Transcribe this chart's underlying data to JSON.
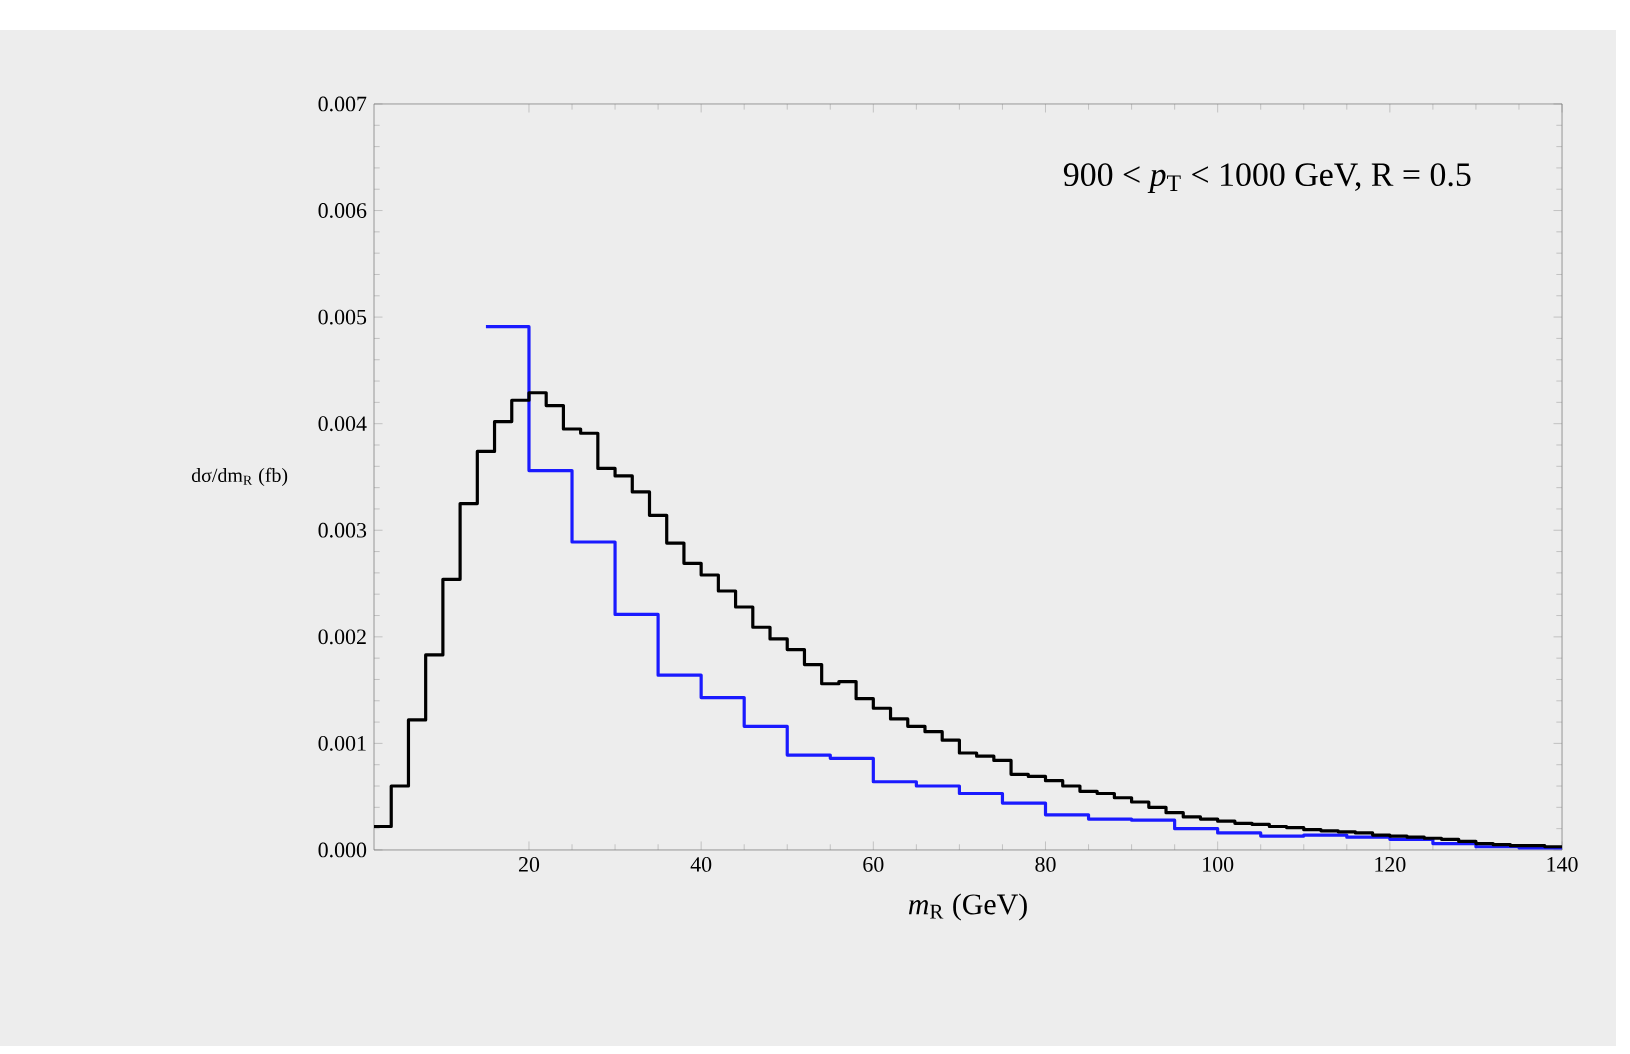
{
  "chart_data": {
    "type": "step",
    "xlabel": "*m*$_{R}$ (GeV)",
    "ylabel": "dσ/dm$_{R}$ (fb)",
    "annotations": [
      "900 < *p*$_{T}$ < 1000 GeV, R = 0.5"
    ],
    "xlim": [
      2,
      140
    ],
    "xticks": [
      20,
      40,
      60,
      80,
      100,
      120,
      140
    ],
    "ylim": [
      0,
      0.007
    ],
    "yticks": [
      {
        "value": 0,
        "label": "0.000"
      },
      {
        "value": 0.001,
        "label": "0.001"
      },
      {
        "value": 0.002,
        "label": "0.002"
      },
      {
        "value": 0.003,
        "label": "0.003"
      },
      {
        "value": 0.004,
        "label": "0.004"
      },
      {
        "value": 0.005,
        "label": "0.005"
      },
      {
        "value": 0.006,
        "label": "0.006"
      },
      {
        "value": 0.007,
        "label": "0.007"
      }
    ],
    "series": [
      {
        "color": "#1a1aff",
        "x": [
          15,
          20,
          25,
          30,
          35,
          40,
          45,
          50,
          55,
          60,
          65,
          70,
          75,
          80,
          85,
          90,
          95,
          100,
          105,
          110,
          115,
          120,
          125,
          130,
          135,
          140
        ],
        "values": [
          0.00491,
          0.00356,
          0.00289,
          0.00221,
          0.00164,
          0.00143,
          0.00116,
          0.00089,
          0.00086,
          0.00064,
          0.0006,
          0.00053,
          0.00044,
          0.00033,
          0.00029,
          0.00028,
          0.0002,
          0.00016,
          0.00013,
          0.00014,
          0.00012,
          0.0001,
          6e-05,
          3e-05,
          2e-05,
          2e-05
        ]
      },
      {
        "color": "#000000",
        "x": [
          2,
          4,
          6,
          8,
          10,
          12,
          14,
          16,
          18,
          20,
          22,
          24,
          26,
          28,
          30,
          32,
          34,
          36,
          38,
          40,
          42,
          44,
          46,
          48,
          50,
          52,
          54,
          56,
          58,
          60,
          62,
          64,
          66,
          68,
          70,
          72,
          74,
          76,
          78,
          80,
          82,
          84,
          86,
          88,
          90,
          92,
          94,
          96,
          98,
          100,
          102,
          104,
          106,
          108,
          110,
          112,
          114,
          116,
          118,
          120,
          122,
          124,
          126,
          128,
          130,
          132,
          134,
          136,
          138,
          140
        ],
        "values": [
          0.00022,
          0.0006,
          0.00122,
          0.00183,
          0.00254,
          0.00325,
          0.00374,
          0.00402,
          0.00422,
          0.00429,
          0.00417,
          0.00395,
          0.00391,
          0.00358,
          0.00351,
          0.00336,
          0.00314,
          0.00288,
          0.00269,
          0.00258,
          0.00243,
          0.00228,
          0.00209,
          0.00198,
          0.00188,
          0.00174,
          0.00156,
          0.00158,
          0.00142,
          0.00133,
          0.00123,
          0.00116,
          0.00111,
          0.00103,
          0.00091,
          0.00088,
          0.00084,
          0.00071,
          0.00069,
          0.00065,
          0.0006,
          0.00055,
          0.00053,
          0.00049,
          0.00045,
          0.0004,
          0.00035,
          0.00031,
          0.00029,
          0.00027,
          0.00025,
          0.00024,
          0.00022,
          0.00021,
          0.00019,
          0.00018,
          0.00017,
          0.00016,
          0.00014,
          0.00013,
          0.00012,
          0.00011,
          0.0001,
          8e-05,
          6e-05,
          5e-05,
          4e-05,
          4e-05,
          3e-05,
          3e-05
        ]
      }
    ]
  }
}
